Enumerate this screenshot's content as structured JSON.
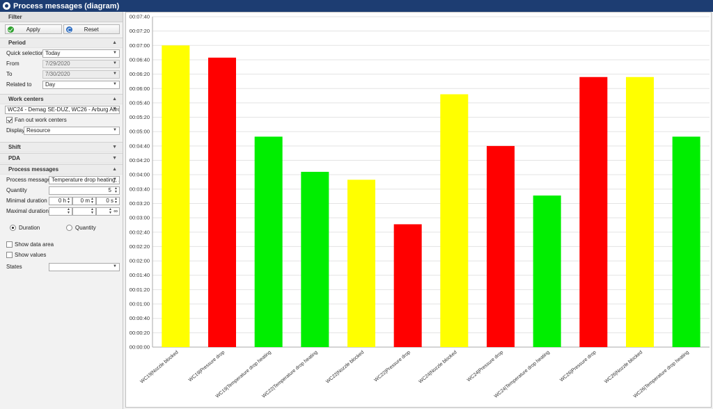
{
  "window": {
    "title": "Process messages (diagram)"
  },
  "filter": {
    "header": "Filter",
    "apply_label": "Apply",
    "reset_label": "Reset",
    "period": {
      "title": "Period",
      "quick_selection_label": "Quick selection",
      "quick_selection_value": "Today",
      "from_label": "From",
      "from_value": "7/29/2020",
      "to_label": "To",
      "to_value": "7/30/2020",
      "related_label": "Related to",
      "related_value": "Day"
    },
    "work_centers": {
      "title": "Work centers",
      "selection_value": "WC24 - Demag SE-DUZ, WC26 - Arburg Allrounde...",
      "fan_out_label": "Fan out work centers",
      "fan_out_checked": true,
      "display_label": "Display",
      "display_value": "Resource"
    },
    "shift": {
      "title": "Shift"
    },
    "pda": {
      "title": "PDA"
    },
    "process_messages": {
      "title": "Process messages",
      "messages_label": "Process messages",
      "messages_value": "Temperature drop heating, ...",
      "quantity_label": "Quantity",
      "quantity_value": "5",
      "min_duration_label": "Minimal duration",
      "min_h": "0 h",
      "min_m": "0 m",
      "min_s": "0 s",
      "max_duration_label": "Maximal duration",
      "max_inf": "∞"
    },
    "radio_duration_label": "Duration",
    "radio_quantity_label": "Quantity",
    "show_data_area_label": "Show data area",
    "show_values_label": "Show values",
    "states_label": "States",
    "states_value": ""
  },
  "chart_data": {
    "type": "bar",
    "categories": [
      "WC19|Nozzle blocked",
      "WC19|Pressure drop",
      "WC19|Temperature drop heating",
      "WC22|Temperature drop heating",
      "WC22|Nozzle blocked",
      "WC22|Pressure drop",
      "WC24|Nozzle blocked",
      "WC24|Pressure drop",
      "WC24|Temperature drop heating",
      "WC26|Pressure drop",
      "WC26|Nozzle blocked",
      "WC26|Temperature drop heating"
    ],
    "values_seconds": [
      420,
      403,
      293,
      244,
      233,
      171,
      352,
      280,
      211,
      376,
      376,
      293
    ],
    "colors": [
      "#ffff00",
      "#ff0000",
      "#00ee00",
      "#00ee00",
      "#ffff00",
      "#ff0000",
      "#ffff00",
      "#ff0000",
      "#00ee00",
      "#ff0000",
      "#ffff00",
      "#00ee00"
    ],
    "y_ticks": [
      "00:00:00",
      "00:00:20",
      "00:00:40",
      "00:01:00",
      "00:01:20",
      "00:01:40",
      "00:02:00",
      "00:02:20",
      "00:02:40",
      "00:03:00",
      "00:03:20",
      "00:03:40",
      "00:04:00",
      "00:04:20",
      "00:04:40",
      "00:05:00",
      "00:05:20",
      "00:05:40",
      "00:06:00",
      "00:06:20",
      "00:06:40",
      "00:07:00",
      "00:07:20",
      "00:07:40"
    ],
    "ylim_seconds": [
      0,
      460
    ],
    "grid": true
  }
}
